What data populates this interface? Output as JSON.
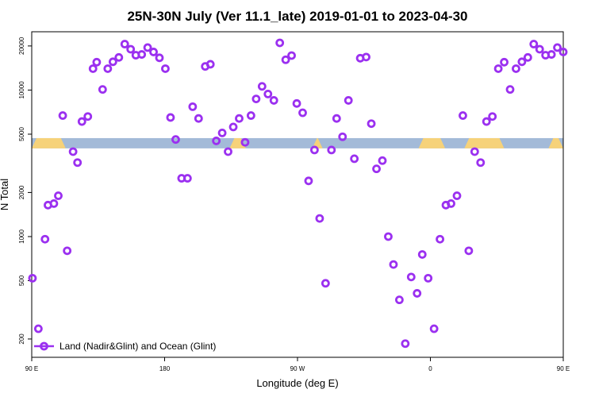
{
  "chart_data": {
    "type": "scatter",
    "title": "25N-30N July (Ver 11.1_late)   2019-01-01 to 2023-04-30",
    "xlabel": "Longitude (deg E)",
    "ylabel": "N Total",
    "xlim": [
      90,
      450
    ],
    "ylim": [
      150,
      25000
    ],
    "yscale": "log",
    "grid": false,
    "legend_position": "bottom-left",
    "x_ticks": [
      {
        "value": 90,
        "label": "90 E"
      },
      {
        "value": 180,
        "label": "180"
      },
      {
        "value": 270,
        "label": "90 W"
      },
      {
        "value": 360,
        "label": "0"
      },
      {
        "value": 450,
        "label": "90 E"
      },
      {
        "value": 540,
        "label": "180"
      }
    ],
    "y_ticks": [
      {
        "value": 200,
        "label": "200"
      },
      {
        "value": 500,
        "label": "500"
      },
      {
        "value": 1000,
        "label": "1000"
      },
      {
        "value": 2000,
        "label": "2000"
      },
      {
        "value": 5000,
        "label": "5000"
      },
      {
        "value": 10000,
        "label": "10000"
      },
      {
        "value": 20000,
        "label": "20000"
      }
    ],
    "surface_band": {
      "y_range": [
        4000,
        4700
      ],
      "land_color": "#f6d27a",
      "ocean_color": "#a3bad8",
      "land_segments": [
        [
          90,
          113
        ],
        [
          224,
          235
        ],
        [
          280,
          287
        ],
        [
          352,
          370
        ],
        [
          383,
          410
        ],
        [
          440,
          473
        ]
      ]
    },
    "series": [
      {
        "name": "Land (Nadir&Glint) and Ocean (Glint)",
        "color": "#9b30f0",
        "marker": "circle-open",
        "x": [
          90.5,
          94.5,
          99,
          101,
          105,
          108,
          111,
          114,
          118,
          121,
          124,
          128,
          131.5,
          134,
          138,
          141.5,
          145,
          149,
          153,
          157,
          160.5,
          164.5,
          168.5,
          172.5,
          176.5,
          180.5,
          184,
          187.5,
          191.5,
          195.5,
          199,
          203,
          207.5,
          211,
          215,
          219,
          223,
          226.5,
          230.5,
          234.5,
          238.5,
          242,
          246,
          250,
          254,
          258,
          262,
          266,
          269.5,
          273.5,
          277.5,
          281.5,
          285,
          289,
          293,
          296.5,
          300.5,
          304.5,
          308.5,
          312.5,
          316.5,
          320,
          323.5,
          327.5,
          331.5,
          335,
          339,
          343,
          347,
          351,
          354.5,
          358.5,
          362.5,
          366.5,
          370.5,
          374,
          378,
          382,
          386,
          390,
          394,
          398,
          402,
          406,
          410,
          414,
          418,
          422,
          426,
          430,
          434,
          438,
          442,
          446,
          450
        ],
        "y": [
          520,
          235,
          960,
          1640,
          1680,
          1900,
          6700,
          800,
          3800,
          3200,
          6100,
          6600,
          14000,
          15500,
          10100,
          14000,
          15600,
          16700,
          20600,
          19000,
          17300,
          17500,
          19500,
          18200,
          16600,
          14000,
          6500,
          4600,
          2500,
          2500,
          7700,
          6400,
          14500,
          15000,
          4500,
          5100,
          3800,
          5600,
          6400,
          4400,
          6700,
          8700,
          10600,
          9400,
          8500,
          21000,
          16100,
          17200,
          8100,
          7000,
          2400,
          3900,
          1330,
          480,
          3900,
          6400,
          4800,
          8500,
          3400,
          16500,
          16800,
          5900,
          2900,
          3300,
          1000,
          645,
          370,
          186,
          530,
          410,
          755,
          520,
          235,
          960,
          1640,
          1680,
          1900,
          6700,
          800,
          3800,
          3200,
          6100,
          6600,
          14000,
          15500,
          10100,
          14000,
          15600,
          16700,
          20600,
          19000,
          17300,
          17500,
          19500,
          18200
        ]
      }
    ]
  }
}
